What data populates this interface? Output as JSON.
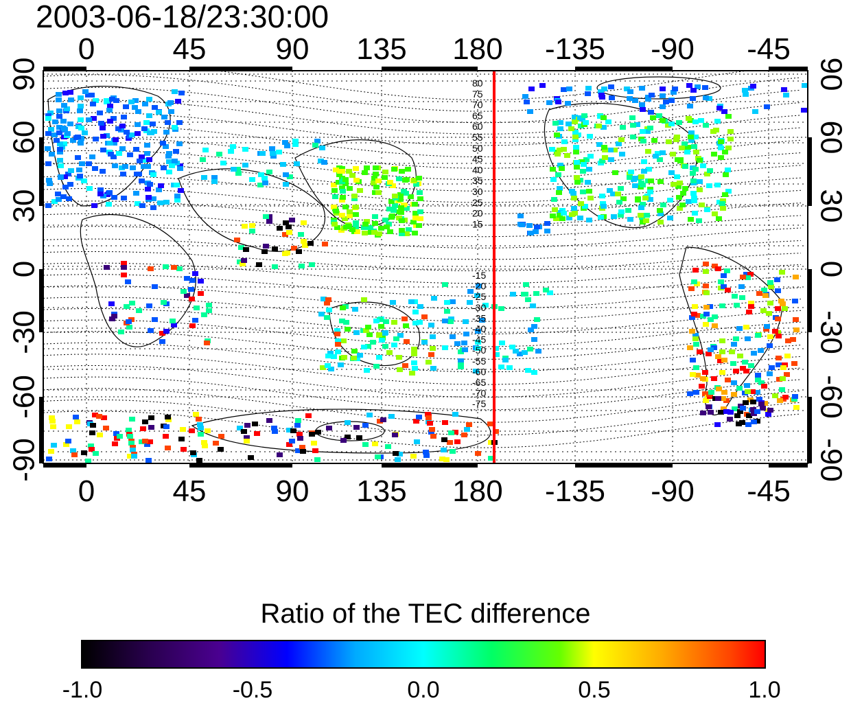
{
  "title": "2003-06-18/23:30:00",
  "map": {
    "lon_ticks": [
      "0",
      "45",
      "90",
      "135",
      "180",
      "-135",
      "-90",
      "-45"
    ],
    "lat_ticks": [
      "90",
      "60",
      "30",
      "0",
      "-30",
      "-60",
      "-90"
    ],
    "contour_labels_north": [
      "80",
      "75",
      "70",
      "65",
      "60",
      "55",
      "50",
      "45",
      "40",
      "35",
      "30",
      "25",
      "20",
      "15"
    ],
    "contour_labels_south": [
      "-15",
      "-20",
      "-25",
      "-30",
      "-35",
      "-40",
      "-45",
      "-50",
      "-55",
      "-60",
      "-65",
      "-70",
      "-75"
    ],
    "marker_line_color": "#ff0000"
  },
  "colorbar": {
    "title": "Ratio of the TEC difference",
    "tick_labels": [
      "-1.0",
      "-0.5",
      "0.0",
      "0.5",
      "1.0"
    ]
  }
}
